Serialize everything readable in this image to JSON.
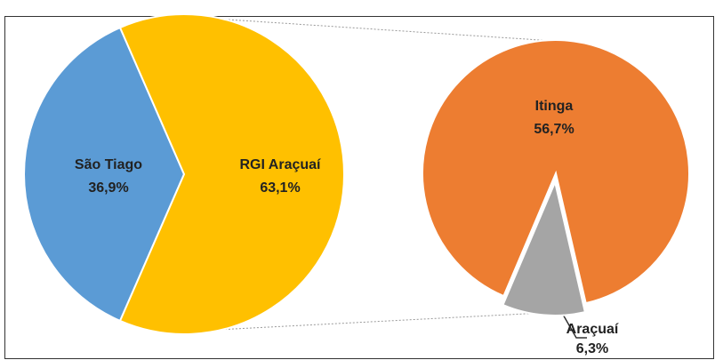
{
  "chart_data": [
    {
      "type": "pie",
      "categories": [
        "São Tiago",
        "RGI Araçuaí"
      ],
      "values": [
        36.9,
        63.1
      ],
      "value_labels": [
        "36,9%",
        "63,1%"
      ],
      "colors": [
        "#5b9bd5",
        "#ffc000"
      ]
    },
    {
      "type": "pie",
      "categories": [
        "Itinga",
        "Araçuaí"
      ],
      "values": [
        56.7,
        6.3
      ],
      "value_labels": [
        "56,7%",
        "6,3%"
      ],
      "colors": [
        "#ed7d31",
        "#a5a5a5"
      ]
    }
  ]
}
